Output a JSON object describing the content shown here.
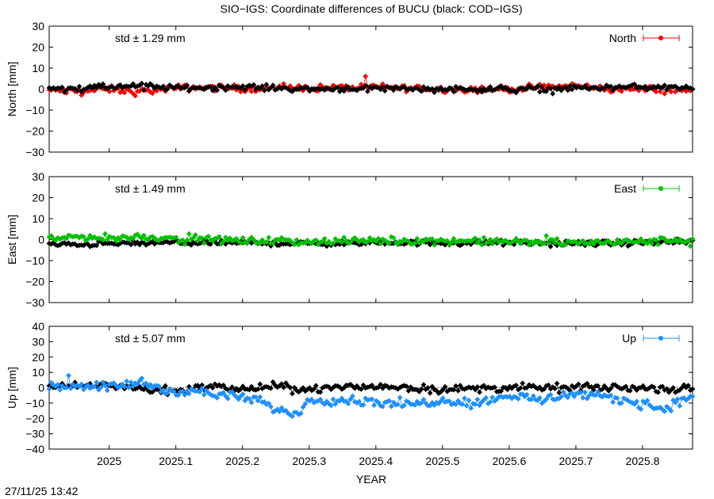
{
  "title": "SIO−IGS: Coordinate differences of BUCU (black: COD−IGS)",
  "timestamp": "27/11/25 13:42",
  "chart_data": {
    "type": "scatter",
    "xlabel": "YEAR",
    "xlim": [
      2024.91,
      2025.875
    ],
    "xticks": [
      2025,
      2025.1,
      2025.2,
      2025.3,
      2025.4,
      2025.5,
      2025.6,
      2025.7,
      2025.8
    ],
    "xtick_labels": [
      "2025",
      "2025.1",
      "2025.2",
      "2025.3",
      "2025.4",
      "2025.5",
      "2025.6",
      "2025.7",
      "2025.8"
    ],
    "grid": false,
    "legend_position": "top-right",
    "panels": [
      {
        "ylabel": "North [mm]",
        "ylim": [
          -30,
          30
        ],
        "yticks": [
          30,
          20,
          10,
          0,
          -10,
          -20,
          -30
        ],
        "ytick_labels": [
          "30",
          "20",
          "10",
          "0",
          "−10",
          "−20",
          "−30"
        ],
        "std_label": "std ± 1.29 mm",
        "series": [
          {
            "name": "North",
            "color": "#ff0000",
            "knots": [
              [
                2024.91,
                -0.5
              ],
              [
                2024.95,
                -1.0
              ],
              [
                2025.0,
                0.0
              ],
              [
                2025.04,
                -1.5
              ],
              [
                2025.1,
                0.5
              ],
              [
                2025.15,
                0.8
              ],
              [
                2025.2,
                0.3
              ],
              [
                2025.3,
                0.5
              ],
              [
                2025.4,
                1.0
              ],
              [
                2025.5,
                0.0
              ],
              [
                2025.6,
                0.0
              ],
              [
                2025.7,
                1.5
              ],
              [
                2025.75,
                0.0
              ],
              [
                2025.8,
                0.0
              ],
              [
                2025.875,
                -0.5
              ]
            ],
            "amplitude": 1.3
          },
          {
            "color": "#000000",
            "knots": [
              [
                2024.91,
                0.0
              ],
              [
                2025.0,
                1.0
              ],
              [
                2025.05,
                1.5
              ],
              [
                2025.1,
                0.5
              ],
              [
                2025.2,
                1.0
              ],
              [
                2025.3,
                0.0
              ],
              [
                2025.4,
                0.5
              ],
              [
                2025.5,
                0.0
              ],
              [
                2025.6,
                0.0
              ],
              [
                2025.7,
                0.5
              ],
              [
                2025.8,
                1.0
              ],
              [
                2025.875,
                0.5
              ]
            ],
            "amplitude": 1.1
          }
        ]
      },
      {
        "ylabel": "East [mm]",
        "ylim": [
          -30,
          30
        ],
        "yticks": [
          30,
          20,
          10,
          0,
          -10,
          -20,
          -30
        ],
        "ytick_labels": [
          "30",
          "20",
          "10",
          "0",
          "−10",
          "−20",
          "−30"
        ],
        "std_label": "std ± 1.49 mm",
        "series": [
          {
            "color": "#000000",
            "knots": [
              [
                2024.91,
                -2.5
              ],
              [
                2025.0,
                -2.0
              ],
              [
                2025.1,
                -1.5
              ],
              [
                2025.2,
                -1.5
              ],
              [
                2025.3,
                -2.0
              ],
              [
                2025.4,
                -1.5
              ],
              [
                2025.5,
                -1.5
              ],
              [
                2025.6,
                -1.5
              ],
              [
                2025.7,
                -2.0
              ],
              [
                2025.8,
                -1.5
              ],
              [
                2025.875,
                -1.0
              ]
            ],
            "amplitude": 1.0
          },
          {
            "name": "East",
            "color": "#00c000",
            "knots": [
              [
                2024.91,
                0.5
              ],
              [
                2024.97,
                1.5
              ],
              [
                2025.0,
                0.5
              ],
              [
                2025.05,
                1.5
              ],
              [
                2025.1,
                0.5
              ],
              [
                2025.2,
                -0.5
              ],
              [
                2025.3,
                -1.0
              ],
              [
                2025.4,
                -0.5
              ],
              [
                2025.5,
                -0.5
              ],
              [
                2025.6,
                -1.0
              ],
              [
                2025.7,
                -1.5
              ],
              [
                2025.8,
                -1.0
              ],
              [
                2025.875,
                0.0
              ]
            ],
            "amplitude": 1.4
          }
        ]
      },
      {
        "ylabel": "Up [mm]",
        "ylim": [
          -40,
          40
        ],
        "yticks": [
          40,
          30,
          20,
          10,
          0,
          -10,
          -20,
          -30,
          -40
        ],
        "ytick_labels": [
          "40",
          "30",
          "20",
          "10",
          "0",
          "−10",
          "−20",
          "−30",
          "−40"
        ],
        "std_label": "std ± 5.07 mm",
        "zero_line": true,
        "series": [
          {
            "color": "#000000",
            "knots": [
              [
                2024.91,
                0.0
              ],
              [
                2024.95,
                1.0
              ],
              [
                2025.0,
                2.0
              ],
              [
                2025.05,
                -1.0
              ],
              [
                2025.1,
                -2.0
              ],
              [
                2025.15,
                1.0
              ],
              [
                2025.2,
                -1.0
              ],
              [
                2025.25,
                1.0
              ],
              [
                2025.3,
                -1.0
              ],
              [
                2025.4,
                1.0
              ],
              [
                2025.5,
                -1.0
              ],
              [
                2025.6,
                0.0
              ],
              [
                2025.7,
                0.0
              ],
              [
                2025.8,
                0.0
              ],
              [
                2025.875,
                -1.0
              ]
            ],
            "amplitude": 2.0
          },
          {
            "name": "Up",
            "color": "#1e90ff",
            "knots": [
              [
                2024.91,
                1.0
              ],
              [
                2024.96,
                2.0
              ],
              [
                2025.0,
                0.0
              ],
              [
                2025.05,
                4.0
              ],
              [
                2025.08,
                -2.0
              ],
              [
                2025.12,
                -2.0
              ],
              [
                2025.17,
                -5.0
              ],
              [
                2025.22,
                -8.0
              ],
              [
                2025.25,
                -14.0
              ],
              [
                2025.28,
                -17.0
              ],
              [
                2025.3,
                -8.0
              ],
              [
                2025.35,
                -8.0
              ],
              [
                2025.4,
                -9.0
              ],
              [
                2025.45,
                -11.0
              ],
              [
                2025.5,
                -8.0
              ],
              [
                2025.55,
                -10.0
              ],
              [
                2025.6,
                -5.0
              ],
              [
                2025.65,
                -8.0
              ],
              [
                2025.7,
                -4.0
              ],
              [
                2025.75,
                -7.0
              ],
              [
                2025.8,
                -10.0
              ],
              [
                2025.83,
                -14.0
              ],
              [
                2025.875,
                -5.0
              ]
            ],
            "amplitude": 2.5
          }
        ]
      }
    ]
  }
}
